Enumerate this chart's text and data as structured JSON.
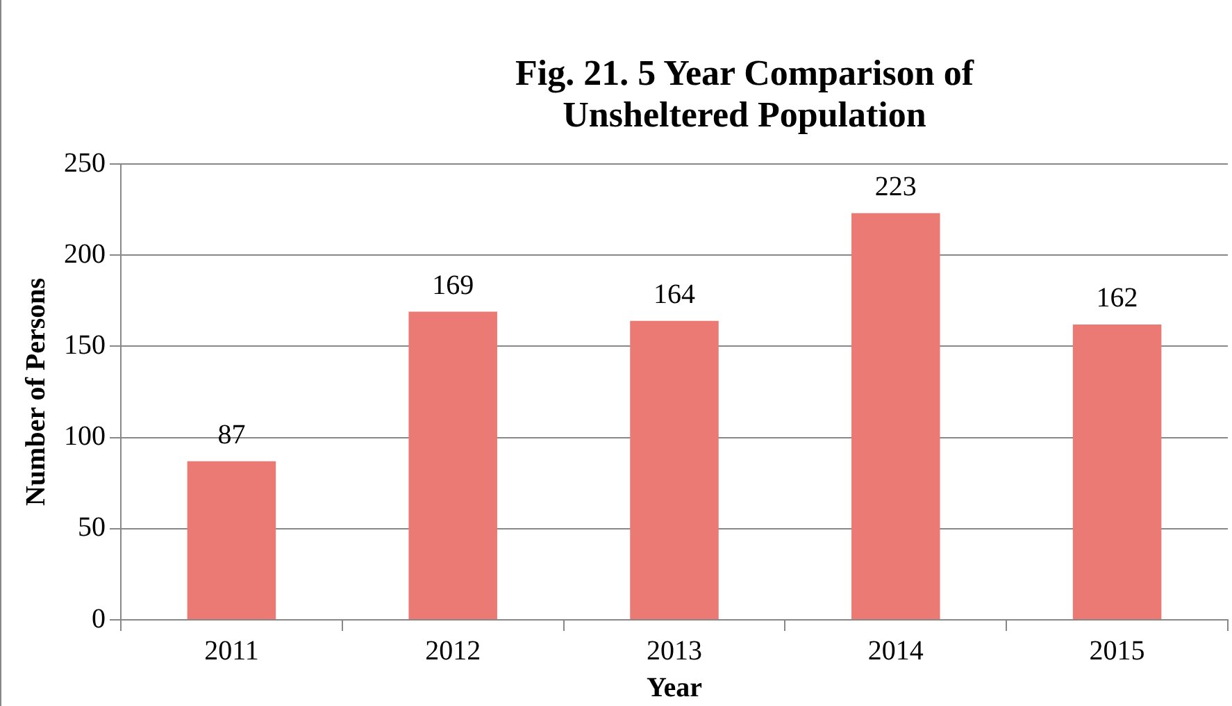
{
  "chart_data": {
    "type": "bar",
    "title": "Fig. 21. 5 Year Comparison of Unsheltered Population",
    "xlabel": "Year",
    "ylabel": "Number of Persons",
    "categories": [
      "2011",
      "2012",
      "2013",
      "2014",
      "2015"
    ],
    "values": [
      87,
      169,
      164,
      223,
      162
    ],
    "color": "#ec7a74",
    "ylim": [
      0,
      250
    ],
    "yticks": [
      0,
      50,
      100,
      150,
      200,
      250
    ],
    "grid": "y",
    "data_labels": true
  }
}
